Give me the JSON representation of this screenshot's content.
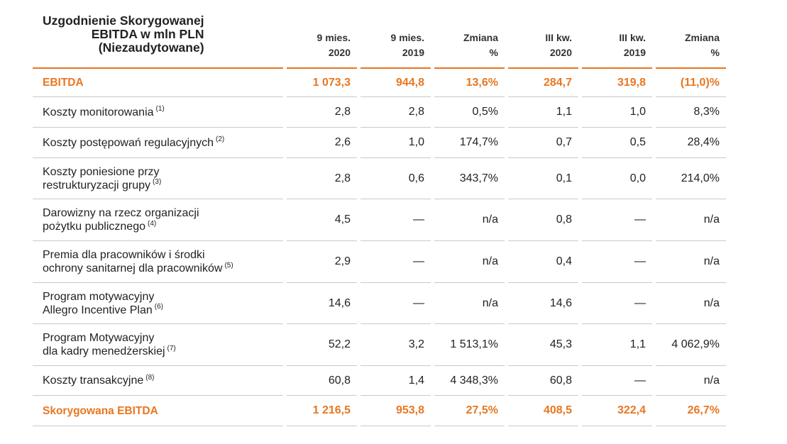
{
  "colors": {
    "accent": "#e87722",
    "rule": "#c9c9c9"
  },
  "header": {
    "title_line1": "Uzgodnienie Skorygowanej",
    "title_line2": "EBITDA w mln PLN",
    "title_line3": "(Niezaudytowane)",
    "columns": [
      {
        "line1": "9 mies.",
        "line2": "2020"
      },
      {
        "line1": "9 mies.",
        "line2": "2019"
      },
      {
        "line1": "Zmiana",
        "line2": "%"
      },
      {
        "line1": "III kw.",
        "line2": "2020"
      },
      {
        "line1": "III kw.",
        "line2": "2019"
      },
      {
        "line1": "Zmiana",
        "line2": "%"
      }
    ]
  },
  "rows": [
    {
      "label1": "EBITDA",
      "label2": "",
      "note": "",
      "values": [
        "1 073,3",
        "944,8",
        "13,6%",
        "284,7",
        "319,8",
        "(11,0)%"
      ]
    },
    {
      "label1": "Koszty monitorowania",
      "label2": "",
      "note": "(1)",
      "values": [
        "2,8",
        "2,8",
        "0,5%",
        "1,1",
        "1,0",
        "8,3%"
      ]
    },
    {
      "label1": "Koszty postępowań regulacyjnych",
      "label2": "",
      "note": "(2)",
      "values": [
        "2,6",
        "1,0",
        "174,7%",
        "0,7",
        "0,5",
        "28,4%"
      ]
    },
    {
      "label1": "Koszty poniesione przy",
      "label2": "restrukturyzacji grupy",
      "note": "(3)",
      "values": [
        "2,8",
        "0,6",
        "343,7%",
        "0,1",
        "0,0",
        "214,0%"
      ]
    },
    {
      "label1": "Darowizny na rzecz organizacji",
      "label2": "pożytku publicznego",
      "note": "(4)",
      "values": [
        "4,5",
        "—",
        "n/a",
        "0,8",
        "—",
        "n/a"
      ]
    },
    {
      "label1": "Premia dla pracowników i środki",
      "label2": "ochrony sanitarnej dla pracowników",
      "note": "(5)",
      "values": [
        "2,9",
        "—",
        "n/a",
        "0,4",
        "—",
        "n/a"
      ]
    },
    {
      "label1": "Program motywacyjny",
      "label2": "Allegro Incentive Plan",
      "note": "(6)",
      "values": [
        "14,6",
        "—",
        "n/a",
        "14,6",
        "—",
        "n/a"
      ]
    },
    {
      "label1": "Program Motywacyjny",
      "label2": "dla kadry menedżerskiej",
      "note": "(7)",
      "values": [
        "52,2",
        "3,2",
        "1 513,1%",
        "45,3",
        "1,1",
        "4 062,9%"
      ]
    },
    {
      "label1": "Koszty transakcyjne",
      "label2": "",
      "note": "(8)",
      "values": [
        "60,8",
        "1,4",
        "4 348,3%",
        "60,8",
        "—",
        "n/a"
      ]
    },
    {
      "label1": "Skorygowana EBITDA",
      "label2": "",
      "note": "",
      "values": [
        "1 216,5",
        "953,8",
        "27,5%",
        "408,5",
        "322,4",
        "26,7%"
      ]
    }
  ]
}
